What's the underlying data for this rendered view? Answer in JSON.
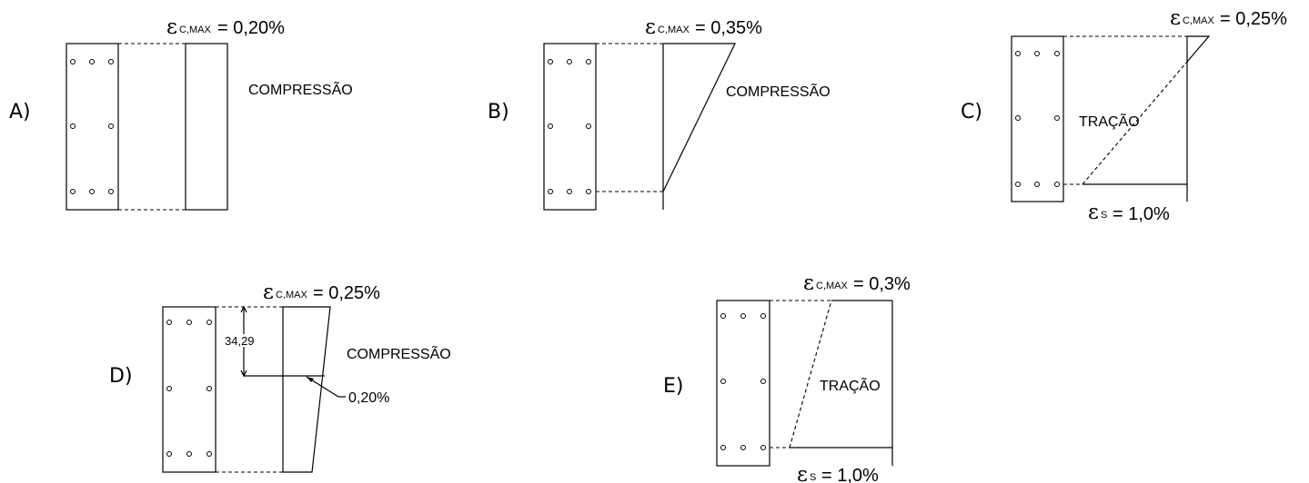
{
  "diagrams": {
    "A": {
      "letter": "A)",
      "strain_symbol": "ε",
      "strain_subscript": "C,MAX",
      "strain_value": "= 0,20%",
      "label": "COMPRESSÃO"
    },
    "B": {
      "letter": "B)",
      "strain_symbol": "ε",
      "strain_subscript": "C,MAX",
      "strain_value": "= 0,35%",
      "label": "COMPRESSÃO"
    },
    "C": {
      "letter": "C)",
      "strain_symbol": "ε",
      "strain_subscript": "C,MAX",
      "strain_value": "= 0,25%",
      "label": "TRAÇÃO",
      "steel_symbol": "ε",
      "steel_subscript": "S",
      "steel_value": "= 1,0%"
    },
    "D": {
      "letter": "D)",
      "strain_symbol": "ε",
      "strain_subscript": "C,MAX",
      "strain_value": "= 0,25%",
      "label": "COMPRESSÃO",
      "dimension": "34,29",
      "callout": "0,20%"
    },
    "E": {
      "letter": "E)",
      "strain_symbol": "ε",
      "strain_subscript": "C,MAX",
      "strain_value": "= 0,3%",
      "label": "TRAÇÃO",
      "steel_symbol": "ε",
      "steel_subscript": "S",
      "steel_value": "= 1,0%"
    }
  }
}
